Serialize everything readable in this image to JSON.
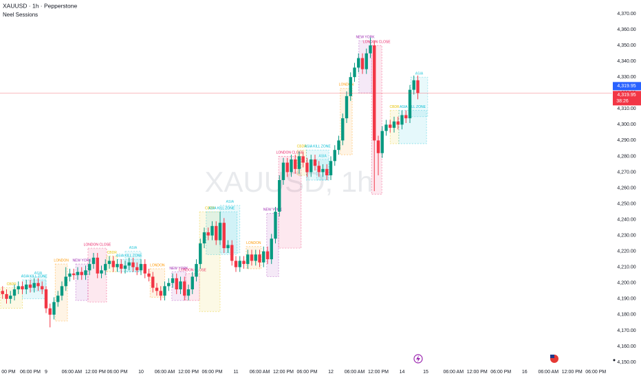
{
  "chart_data": {
    "type": "candlestick",
    "title": "XAUUSD · 1h · Pepperstone",
    "subtitle": "Neel Sessions",
    "watermark": "XAUUSD, 1h",
    "up_color": "#089981",
    "down_color": "#f23645",
    "x": [
      -11,
      -10,
      -9,
      -8,
      -7,
      -6,
      -5,
      -4,
      -3,
      -2,
      -1,
      0,
      1,
      2,
      3,
      4,
      5,
      6,
      7,
      8,
      9,
      10,
      11,
      12,
      13,
      14,
      15,
      16,
      17,
      18,
      19,
      20,
      21,
      22,
      23,
      24,
      25,
      26,
      27,
      28,
      29,
      30,
      31,
      32,
      33,
      34,
      35,
      36,
      37,
      38,
      39,
      40,
      41,
      42,
      43,
      44,
      45,
      46,
      47,
      48,
      49,
      50,
      51,
      52,
      53,
      54,
      55,
      56,
      57,
      58,
      59,
      60,
      61,
      62,
      63,
      64,
      65,
      66,
      67,
      68,
      69,
      70,
      71,
      72,
      73,
      74,
      75,
      76,
      77,
      78,
      79,
      80,
      81,
      82,
      83,
      84,
      85,
      86,
      87,
      88,
      89,
      90,
      91,
      92,
      93,
      94
    ],
    "open": [
      4195,
      4193,
      4190,
      4192,
      4196,
      4198,
      4196,
      4199,
      4197,
      4200,
      4198,
      4196,
      4184,
      4180,
      4188,
      4192,
      4198,
      4204,
      4206,
      4205,
      4207,
      4205,
      4208,
      4212,
      4216,
      4206,
      4208,
      4212,
      4214,
      4210,
      4212,
      4209,
      4211,
      4213,
      4210,
      4208,
      4212,
      4206,
      4204,
      4197,
      4195,
      4192,
      4198,
      4200,
      4203,
      4196,
      4201,
      4192,
      4196,
      4204,
      4212,
      4225,
      4232,
      4230,
      4236,
      4227,
      4238,
      4222,
      4224,
      4214,
      4210,
      4214,
      4212,
      4218,
      4214,
      4218,
      4213,
      4220,
      4215,
      4228,
      4245,
      4265,
      4276,
      4270,
      4278,
      4272,
      4280,
      4276,
      4270,
      4278,
      4274,
      4270,
      4272,
      4268,
      4277,
      4284,
      4290,
      4304,
      4318,
      4330,
      4336,
      4342,
      4335,
      4345,
      4350,
      4290,
      4282,
      4296,
      4300,
      4298,
      4302,
      4300,
      4306,
      4304,
      4322,
      4328
    ],
    "high": [
      4198,
      4196,
      4195,
      4199,
      4201,
      4201,
      4202,
      4202,
      4203,
      4203,
      4201,
      4198,
      4187,
      4191,
      4195,
      4201,
      4210,
      4209,
      4209,
      4210,
      4210,
      4211,
      4215,
      4219,
      4219,
      4211,
      4215,
      4217,
      4217,
      4215,
      4215,
      4214,
      4216,
      4216,
      4213,
      4215,
      4215,
      4209,
      4207,
      4200,
      4198,
      4201,
      4203,
      4206,
      4206,
      4204,
      4204,
      4199,
      4207,
      4215,
      4228,
      4235,
      4235,
      4239,
      4239,
      4245,
      4241,
      4227,
      4227,
      4217,
      4217,
      4217,
      4221,
      4221,
      4221,
      4221,
      4223,
      4223,
      4231,
      4248,
      4268,
      4279,
      4279,
      4281,
      4281,
      4283,
      4283,
      4279,
      4281,
      4281,
      4277,
      4275,
      4275,
      4280,
      4287,
      4293,
      4307,
      4321,
      4333,
      4339,
      4345,
      4345,
      4348,
      4355,
      4353,
      4293,
      4299,
      4303,
      4303,
      4305,
      4305,
      4309,
      4309,
      4325,
      4331,
      4331
    ],
    "low": [
      4190,
      4187,
      4187,
      4189,
      4193,
      4193,
      4193,
      4194,
      4194,
      4195,
      4193,
      4181,
      4172,
      4177,
      4185,
      4189,
      4195,
      4201,
      4202,
      4202,
      4202,
      4202,
      4205,
      4209,
      4203,
      4203,
      4205,
      4209,
      4207,
      4207,
      4206,
      4206,
      4208,
      4207,
      4205,
      4205,
      4203,
      4201,
      4194,
      4192,
      4189,
      4189,
      4195,
      4197,
      4193,
      4193,
      4189,
      4189,
      4193,
      4201,
      4209,
      4222,
      4227,
      4227,
      4224,
      4224,
      4219,
      4219,
      4211,
      4207,
      4207,
      4209,
      4209,
      4211,
      4211,
      4210,
      4210,
      4212,
      4212,
      4225,
      4242,
      4262,
      4267,
      4267,
      4269,
      4269,
      4273,
      4267,
      4267,
      4271,
      4267,
      4267,
      4265,
      4265,
      4274,
      4281,
      4287,
      4301,
      4315,
      4327,
      4333,
      4332,
      4332,
      4342,
      4258,
      4268,
      4279,
      4293,
      4295,
      4295,
      4297,
      4297,
      4301,
      4301,
      4319,
      4316
    ],
    "close": [
      4193,
      4190,
      4192,
      4196,
      4198,
      4196,
      4199,
      4197,
      4200,
      4198,
      4196,
      4184,
      4180,
      4188,
      4192,
      4198,
      4204,
      4206,
      4205,
      4207,
      4205,
      4208,
      4212,
      4216,
      4206,
      4208,
      4212,
      4214,
      4210,
      4212,
      4209,
      4211,
      4213,
      4210,
      4208,
      4212,
      4206,
      4204,
      4197,
      4195,
      4192,
      4198,
      4200,
      4203,
      4196,
      4201,
      4192,
      4196,
      4204,
      4212,
      4225,
      4232,
      4230,
      4236,
      4227,
      4238,
      4222,
      4224,
      4214,
      4210,
      4214,
      4212,
      4218,
      4214,
      4218,
      4213,
      4220,
      4215,
      4228,
      4245,
      4265,
      4276,
      4270,
      4278,
      4272,
      4280,
      4276,
      4270,
      4278,
      4274,
      4270,
      4272,
      4268,
      4277,
      4284,
      4290,
      4304,
      4318,
      4330,
      4336,
      4342,
      4335,
      4345,
      4350,
      4290,
      4282,
      4296,
      4300,
      4298,
      4302,
      4300,
      4306,
      4304,
      4322,
      4328,
      4319.95
    ],
    "sessions": [
      {
        "label": "CBDR",
        "color": "#e6c200",
        "start": -11.5,
        "end": -6,
        "low": 4184,
        "high": 4197
      },
      {
        "label": "ASIA KILL ZONE",
        "color": "#00bcd4",
        "start": -6,
        "end": 0,
        "low": 4190,
        "high": 4202
      },
      {
        "label": "ASIA",
        "color": "#26c6da",
        "start": -4,
        "end": 0,
        "low": 4195,
        "high": 4204
      },
      {
        "label": "LONDON",
        "color": "#ff9800",
        "start": 2.3,
        "end": 5.4,
        "low": 4176,
        "high": 4212
      },
      {
        "label": "NEW YORK",
        "color": "#9c27b0",
        "start": 7.5,
        "end": 10.6,
        "low": 4189,
        "high": 4212
      },
      {
        "label": "LONDON CLOSE",
        "color": "#e91e63",
        "start": 10.6,
        "end": 15.3,
        "low": 4188,
        "high": 4222
      },
      {
        "label": "CBDR",
        "color": "#e6c200",
        "start": 15.3,
        "end": 18,
        "low": 4207,
        "high": 4217
      },
      {
        "label": "ASIA KILL ZONE",
        "color": "#00bcd4",
        "start": 18,
        "end": 24,
        "low": 4207,
        "high": 4215
      },
      {
        "label": "ASIA",
        "color": "#26c6da",
        "start": 20,
        "end": 24,
        "low": 4207,
        "high": 4220
      },
      {
        "label": "LONDON",
        "color": "#ff9800",
        "start": 26.3,
        "end": 30,
        "low": 4191,
        "high": 4209
      },
      {
        "label": "NEW YORK",
        "color": "#9c27b0",
        "start": 31.8,
        "end": 35.3,
        "low": 4189,
        "high": 4207
      },
      {
        "label": "LONDON CLOSE",
        "color": "#e91e63",
        "start": 35.3,
        "end": 38.8,
        "low": 4189,
        "high": 4206
      },
      {
        "label": "CBDR",
        "color": "#e6c200",
        "start": 38.8,
        "end": 44,
        "low": 4182,
        "high": 4245
      },
      {
        "label": "ASIA KILL ZONE",
        "color": "#00bcd4",
        "start": 40.5,
        "end": 48.3,
        "low": 4218,
        "high": 4245
      },
      {
        "label": "ASIA",
        "color": "#26c6da",
        "start": 44,
        "end": 49,
        "low": 4219,
        "high": 4249
      },
      {
        "label": "LONDON",
        "color": "#ff9800",
        "start": 50.6,
        "end": 54.4,
        "low": 4209,
        "high": 4223
      },
      {
        "label": "NEW YORK",
        "color": "#9c27b0",
        "start": 55.8,
        "end": 58.8,
        "low": 4204,
        "high": 4244
      },
      {
        "label": "LONDON CLOSE",
        "color": "#e91e63",
        "start": 58.8,
        "end": 64.5,
        "low": 4222,
        "high": 4280
      },
      {
        "label": "CBDR",
        "color": "#e6c200",
        "start": 63.5,
        "end": 65.8,
        "low": 4268,
        "high": 4284
      },
      {
        "label": "ASIA KILL ZONE",
        "color": "#00bcd4",
        "start": 65.8,
        "end": 71.5,
        "low": 4265,
        "high": 4284
      },
      {
        "label": "ASIA",
        "color": "#26c6da",
        "start": 68.4,
        "end": 71.5,
        "low": 4265,
        "high": 4278
      },
      {
        "label": "LONDON",
        "color": "#ff9800",
        "start": 74.4,
        "end": 77.4,
        "low": 4281,
        "high": 4323
      },
      {
        "label": "NEW YORK",
        "color": "#9c27b0",
        "start": 79.1,
        "end": 82.3,
        "low": 4320,
        "high": 4353
      },
      {
        "label": "LONDON CLOSE",
        "color": "#e91e63",
        "start": 82.3,
        "end": 84.9,
        "low": 4256,
        "high": 4350
      },
      {
        "label": "CBDR",
        "color": "#e6c200",
        "start": 87,
        "end": 89.2,
        "low": 4288,
        "high": 4309
      },
      {
        "label": "ASIA KILL ZONE",
        "color": "#00bcd4",
        "start": 89.2,
        "end": 96.2,
        "low": 4288,
        "high": 4309
      },
      {
        "label": "ASIA",
        "color": "#26c6da",
        "start": 92.2,
        "end": 96.5,
        "low": 4305,
        "high": 4330
      }
    ],
    "last_price": {
      "value": 4319.95,
      "label": "4,319.95"
    },
    "countdown": "38:26",
    "xlim": [
      -11.65,
      143.13
    ],
    "xticks": [
      {
        "value": -9.5,
        "label": "00 PM"
      },
      {
        "value": -4,
        "label": "06:00 PM"
      },
      {
        "value": 0,
        "label": "9"
      },
      {
        "value": 6.5,
        "label": "06:00 AM"
      },
      {
        "value": 12.5,
        "label": "12:00 PM"
      },
      {
        "value": 18,
        "label": "06:00 PM"
      },
      {
        "value": 24,
        "label": "10"
      },
      {
        "value": 30,
        "label": "06:00 AM"
      },
      {
        "value": 36,
        "label": "12:00 PM"
      },
      {
        "value": 42,
        "label": "06:00 PM"
      },
      {
        "value": 48,
        "label": "11"
      },
      {
        "value": 54,
        "label": "06:00 AM"
      },
      {
        "value": 60,
        "label": "12:00 PM"
      },
      {
        "value": 66,
        "label": "06:00 PM"
      },
      {
        "value": 72,
        "label": "12"
      },
      {
        "value": 78,
        "label": "06:00 AM"
      },
      {
        "value": 84,
        "label": "12:00 PM"
      },
      {
        "value": 90,
        "label": "14"
      },
      {
        "value": 96,
        "label": "15"
      },
      {
        "value": 103,
        "label": "06:00 AM"
      },
      {
        "value": 109,
        "label": "12:00 PM"
      },
      {
        "value": 115,
        "label": "06:00 PM"
      },
      {
        "value": 121,
        "label": "16"
      },
      {
        "value": 127,
        "label": "06:00 AM"
      },
      {
        "value": 133,
        "label": "12:00 PM"
      },
      {
        "value": 139,
        "label": "06:00 PM"
      }
    ],
    "ylim": [
      4147.83,
      4378.68
    ],
    "yticks": [
      {
        "value": 4150,
        "label": "4,150.00"
      },
      {
        "value": 4160,
        "label": "4,160.00"
      },
      {
        "value": 4170,
        "label": "4,170.00"
      },
      {
        "value": 4180,
        "label": "4,180.00"
      },
      {
        "value": 4190,
        "label": "4,190.00"
      },
      {
        "value": 4200,
        "label": "4,200.00"
      },
      {
        "value": 4210,
        "label": "4,210.00"
      },
      {
        "value": 4220,
        "label": "4,220.00"
      },
      {
        "value": 4230,
        "label": "4,230.00"
      },
      {
        "value": 4240,
        "label": "4,240.00"
      },
      {
        "value": 4250,
        "label": "4,250.00"
      },
      {
        "value": 4260,
        "label": "4,260.00"
      },
      {
        "value": 4270,
        "label": "4,270.00"
      },
      {
        "value": 4280,
        "label": "4,280.00"
      },
      {
        "value": 4290,
        "label": "4,290.00"
      },
      {
        "value": 4300,
        "label": "4,300.00"
      },
      {
        "value": 4310,
        "label": "4,310.00"
      },
      {
        "value": 4320,
        "label": "4,320.00"
      },
      {
        "value": 4330,
        "label": "4,330.00"
      },
      {
        "value": 4340,
        "label": "4,340.00"
      },
      {
        "value": 4350,
        "label": "4,350.00"
      },
      {
        "value": 4360,
        "label": "4,360.00"
      },
      {
        "value": 4370,
        "label": "4,370.00"
      }
    ],
    "grid": false
  }
}
